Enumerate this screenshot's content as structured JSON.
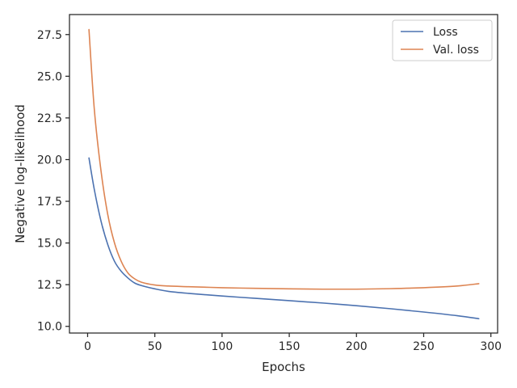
{
  "chart_data": {
    "type": "line",
    "title": "",
    "xlabel": "Epochs",
    "ylabel": "Negative log-likelihood",
    "xlim": [
      -13.5,
      305
    ],
    "ylim": [
      9.6,
      28.7
    ],
    "xticks": [
      0,
      50,
      100,
      150,
      200,
      250,
      300
    ],
    "xtick_labels": [
      "0",
      "50",
      "100",
      "150",
      "200",
      "250",
      "300"
    ],
    "yticks": [
      10.0,
      12.5,
      15.0,
      17.5,
      20.0,
      22.5,
      25.0,
      27.5
    ],
    "ytick_labels": [
      "10.0",
      "12.5",
      "15.0",
      "17.5",
      "20.0",
      "22.5",
      "25.0",
      "27.5"
    ],
    "grid": false,
    "legend_position": "top-right",
    "series": [
      {
        "name": "Loss",
        "color": "#4c72b0",
        "x": [
          1,
          5,
          10,
          15,
          20,
          25,
          30,
          35,
          40,
          50,
          60,
          75,
          100,
          125,
          150,
          175,
          200,
          225,
          250,
          275,
          291
        ],
        "y": [
          20.1,
          18.2,
          16.3,
          14.9,
          13.9,
          13.3,
          12.9,
          12.6,
          12.45,
          12.25,
          12.1,
          11.98,
          11.82,
          11.68,
          11.54,
          11.4,
          11.24,
          11.06,
          10.86,
          10.64,
          10.46
        ]
      },
      {
        "name": "Val. loss",
        "color": "#dd8452",
        "x": [
          1,
          5,
          10,
          15,
          20,
          25,
          30,
          35,
          40,
          50,
          60,
          75,
          100,
          125,
          150,
          175,
          200,
          225,
          250,
          275,
          291
        ],
        "y": [
          27.8,
          23.0,
          19.3,
          16.7,
          15.0,
          13.9,
          13.2,
          12.85,
          12.65,
          12.48,
          12.42,
          12.38,
          12.32,
          12.28,
          12.25,
          12.23,
          12.23,
          12.26,
          12.32,
          12.42,
          12.56
        ]
      }
    ]
  }
}
